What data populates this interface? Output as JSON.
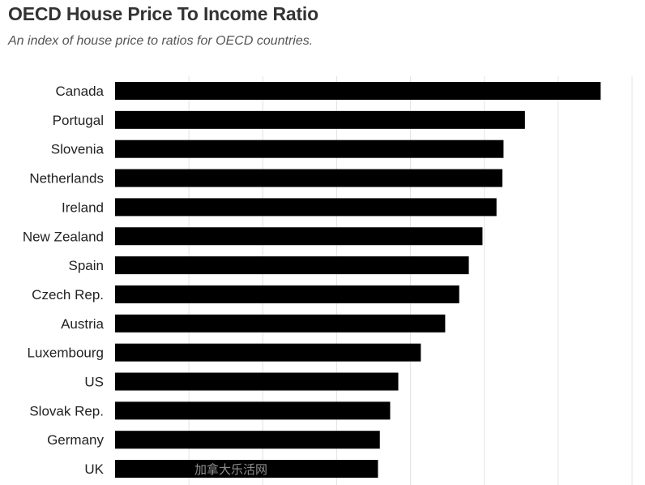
{
  "header": {
    "title": "OECD House Price To Income Ratio",
    "subtitle": "An index of house price to ratios for OECD countries."
  },
  "colors": {
    "bar": "#000000",
    "grid": "#e3e3e3",
    "label": "#222222"
  },
  "watermark": {
    "text": "加拿大乐活网"
  },
  "chart_data": {
    "type": "bar",
    "orientation": "horizontal",
    "categories": [
      "Canada",
      "Portugal",
      "Slovenia",
      "Netherlands",
      "Ireland",
      "New Zealand",
      "Spain",
      "Czech Rep.",
      "Austria",
      "Luxembourg",
      "US",
      "Slovak Rep.",
      "Germany",
      "UK"
    ],
    "values": [
      131.5,
      111.0,
      105.2,
      104.9,
      103.3,
      99.5,
      95.8,
      93.2,
      89.4,
      82.8,
      76.7,
      74.5,
      71.7,
      71.2
    ],
    "xlim": [
      0,
      140
    ],
    "grid": true,
    "x_tick_labels_visible": false
  }
}
